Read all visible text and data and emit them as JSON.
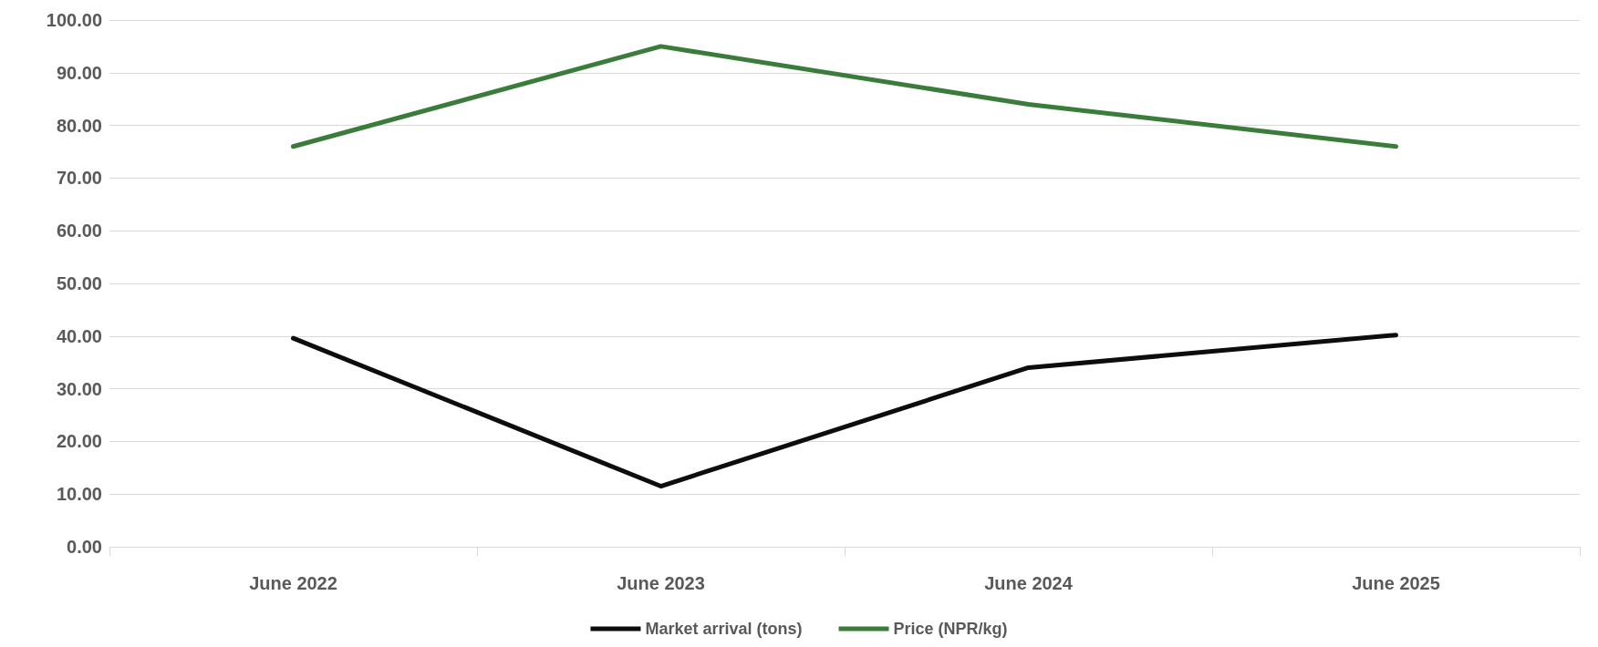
{
  "chart_data": {
    "type": "line",
    "categories": [
      "June 2022",
      "June 2023",
      "June 2024",
      "June 2025"
    ],
    "series": [
      {
        "name": "Market arrival (tons)",
        "color": "#0d0d0d",
        "values": [
          39.6,
          11.5,
          34.0,
          40.2
        ]
      },
      {
        "name": "Price (NPR/kg)",
        "color": "#3a7d3a",
        "values": [
          76.0,
          95.0,
          84.0,
          76.0
        ]
      }
    ],
    "ylim": [
      0,
      100
    ],
    "yticks": [
      {
        "value": 0,
        "label": "0.00"
      },
      {
        "value": 10,
        "label": "10.00"
      },
      {
        "value": 20,
        "label": "20.00"
      },
      {
        "value": 30,
        "label": "30.00"
      },
      {
        "value": 40,
        "label": "40.00"
      },
      {
        "value": 50,
        "label": "50.00"
      },
      {
        "value": 60,
        "label": "60.00"
      },
      {
        "value": 70,
        "label": "70.00"
      },
      {
        "value": 80,
        "label": "80.00"
      },
      {
        "value": 90,
        "label": "90.00"
      },
      {
        "value": 100,
        "label": "100.00"
      }
    ],
    "grid": "y",
    "legend": "bottom",
    "marker": "none",
    "line_style": "solid"
  }
}
